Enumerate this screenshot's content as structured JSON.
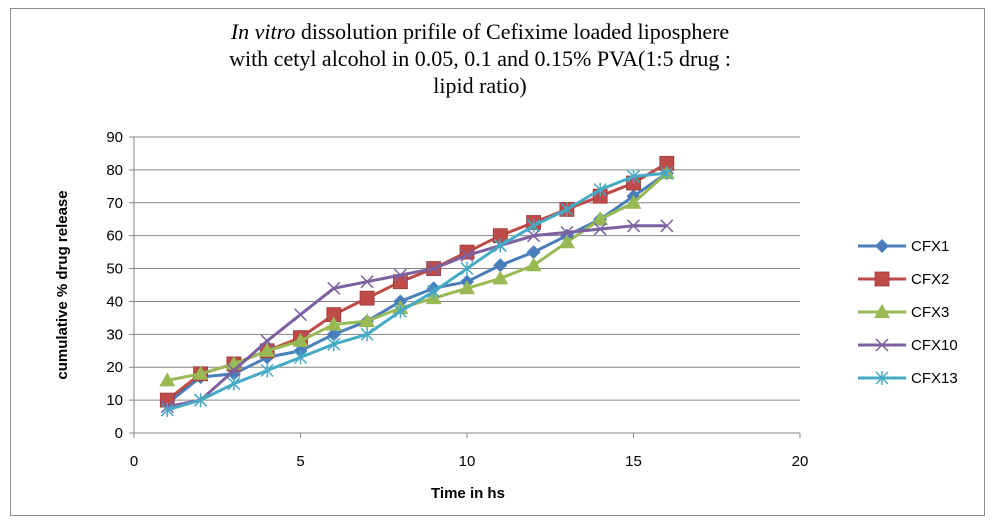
{
  "chart_data": {
    "type": "line",
    "title_italic": "In vitro",
    "title_rest": " dissolution prifile of Cefixime loaded liposphere\nwith cetyl alcohol  in  0.05, 0.1 and 0.15% PVA(1:5 drug :\nlipid ratio)",
    "xlabel": "Time in hs",
    "ylabel": "cumulative % drug release",
    "xlim": [
      0,
      20
    ],
    "ylim": [
      0,
      90
    ],
    "x_ticks": [
      0,
      5,
      10,
      15,
      20
    ],
    "y_ticks": [
      0,
      10,
      20,
      30,
      40,
      50,
      60,
      70,
      80,
      90
    ],
    "grid": "horizontal",
    "legend_position": "right",
    "x": [
      1,
      2,
      3,
      4,
      5,
      6,
      7,
      8,
      9,
      10,
      11,
      12,
      13,
      14,
      15,
      16
    ],
    "series": [
      {
        "name": "CFX1",
        "color": "#4a7ebb",
        "marker": "diamond",
        "values": [
          9,
          17,
          18,
          23,
          25,
          30,
          34,
          40,
          44,
          46,
          51,
          55,
          60,
          65,
          72,
          79
        ]
      },
      {
        "name": "CFX2",
        "color": "#be4b48",
        "marker": "square",
        "values": [
          10,
          18,
          21,
          25,
          29,
          36,
          41,
          46,
          50,
          55,
          60,
          64,
          68,
          72,
          76,
          82
        ]
      },
      {
        "name": "CFX3",
        "color": "#98b954",
        "marker": "triangle",
        "values": [
          16,
          18,
          21,
          25,
          28,
          33,
          34,
          38,
          41,
          44,
          47,
          51,
          58,
          65,
          70,
          79
        ]
      },
      {
        "name": "CFX10",
        "color": "#7d60a0",
        "marker": "x",
        "values": [
          8,
          10,
          19,
          28,
          36,
          44,
          46,
          48,
          50,
          54,
          57,
          60,
          61,
          62,
          63,
          63
        ]
      },
      {
        "name": "CFX13",
        "color": "#46aac5",
        "marker": "star",
        "values": [
          7,
          10,
          15,
          19,
          23,
          27,
          30,
          37,
          43,
          50,
          57,
          63,
          68,
          74,
          78,
          79
        ]
      }
    ]
  }
}
